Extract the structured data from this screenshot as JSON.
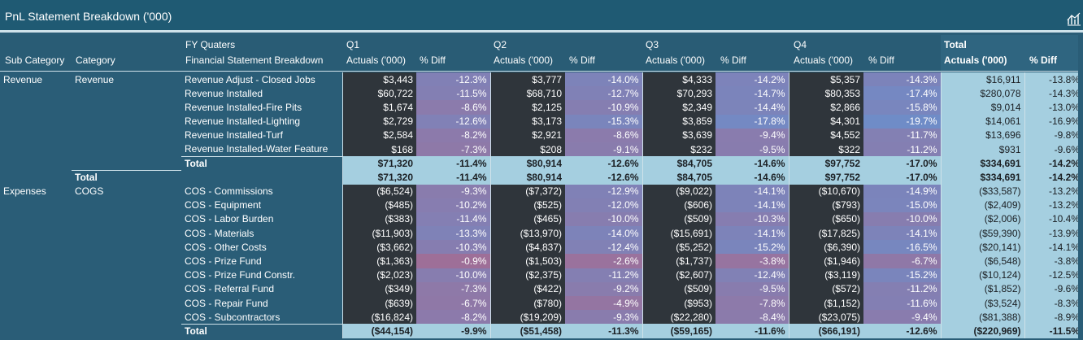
{
  "visual": {
    "title": "PnL Statement Breakdown ('000)"
  },
  "headers": {
    "sub_category": "Sub Category",
    "category": "Category",
    "fy_quarters": "FY Quaters",
    "breakdown": "Financial Statement Breakdown",
    "q1": "Q1",
    "q2": "Q2",
    "q3": "Q3",
    "q4": "Q4",
    "total": "Total",
    "actuals": "Actuals ('000)",
    "pct_diff": "% Diff"
  },
  "rows": [
    {
      "sub": "Revenue",
      "cat": "Revenue",
      "item": "Revenue Adjust - Closed Jobs",
      "q1": "$3,443",
      "q1p": "-12.3%",
      "q2": "$3,777",
      "q2p": "-14.0%",
      "q3": "$4,333",
      "q3p": "-14.2%",
      "q4": "$5,357",
      "q4p": "-14.3%",
      "ta": "$16,911",
      "tp": "-13.8%",
      "type": "data",
      "pv": [
        -12.3,
        -14.0,
        -14.2,
        -14.3
      ]
    },
    {
      "sub": "",
      "cat": "",
      "item": "Revenue Installed",
      "q1": "$60,722",
      "q1p": "-11.5%",
      "q2": "$68,710",
      "q2p": "-12.7%",
      "q3": "$70,293",
      "q3p": "-14.7%",
      "q4": "$80,353",
      "q4p": "-17.4%",
      "ta": "$280,078",
      "tp": "-14.3%",
      "type": "data",
      "pv": [
        -11.5,
        -12.7,
        -14.7,
        -17.4
      ]
    },
    {
      "sub": "",
      "cat": "",
      "item": "Revenue Installed-Fire Pits",
      "q1": "$1,674",
      "q1p": "-8.6%",
      "q2": "$2,125",
      "q2p": "-10.9%",
      "q3": "$2,349",
      "q3p": "-14.4%",
      "q4": "$2,866",
      "q4p": "-15.8%",
      "ta": "$9,014",
      "tp": "-13.0%",
      "type": "data",
      "pv": [
        -8.6,
        -10.9,
        -14.4,
        -15.8
      ]
    },
    {
      "sub": "",
      "cat": "",
      "item": "Revenue Installed-Lighting",
      "q1": "$2,729",
      "q1p": "-12.6%",
      "q2": "$3,173",
      "q2p": "-15.3%",
      "q3": "$3,859",
      "q3p": "-17.8%",
      "q4": "$4,301",
      "q4p": "-19.7%",
      "ta": "$14,061",
      "tp": "-16.9%",
      "type": "data",
      "pv": [
        -12.6,
        -15.3,
        -17.8,
        -19.7
      ]
    },
    {
      "sub": "",
      "cat": "",
      "item": "Revenue Installed-Turf",
      "q1": "$2,584",
      "q1p": "-8.2%",
      "q2": "$2,921",
      "q2p": "-8.6%",
      "q3": "$3,639",
      "q3p": "-9.4%",
      "q4": "$4,552",
      "q4p": "-11.7%",
      "ta": "$13,696",
      "tp": "-9.8%",
      "type": "data",
      "pv": [
        -8.2,
        -8.6,
        -9.4,
        -11.7
      ]
    },
    {
      "sub": "",
      "cat": "",
      "item": "Revenue Installed-Water Feature",
      "q1": "$168",
      "q1p": "-7.3%",
      "q2": "$208",
      "q2p": "-9.1%",
      "q3": "$232",
      "q3p": "-9.5%",
      "q4": "$322",
      "q4p": "-11.2%",
      "ta": "$931",
      "tp": "-9.6%",
      "type": "data",
      "pv": [
        -7.3,
        -9.1,
        -9.5,
        -11.2
      ]
    },
    {
      "sub": "",
      "cat": "",
      "item": "Total",
      "q1": "$71,320",
      "q1p": "-11.4%",
      "q2": "$80,914",
      "q2p": "-12.6%",
      "q3": "$84,705",
      "q3p": "-14.6%",
      "q4": "$97,752",
      "q4p": "-17.0%",
      "ta": "$334,691",
      "tp": "-14.2%",
      "type": "total",
      "pv": [
        0,
        0,
        0,
        0
      ]
    },
    {
      "sub": "",
      "cat": "Total",
      "item": "",
      "q1": "$71,320",
      "q1p": "-11.4%",
      "q2": "$80,914",
      "q2p": "-12.6%",
      "q3": "$84,705",
      "q3p": "-14.6%",
      "q4": "$97,752",
      "q4p": "-17.0%",
      "ta": "$334,691",
      "tp": "-14.2%",
      "type": "grand",
      "pv": [
        0,
        0,
        0,
        0
      ]
    },
    {
      "sub": "Expenses",
      "cat": "COGS",
      "item": "COS - Commissions",
      "q1": "($6,524)",
      "q1p": "-9.3%",
      "q2": "($7,372)",
      "q2p": "-12.9%",
      "q3": "($9,022)",
      "q3p": "-14.1%",
      "q4": "($10,670)",
      "q4p": "-14.9%",
      "ta": "($33,587)",
      "tp": "-13.2%",
      "type": "data",
      "pv": [
        -9.3,
        -12.9,
        -14.1,
        -14.9
      ]
    },
    {
      "sub": "",
      "cat": "",
      "item": "COS - Equipment",
      "q1": "($485)",
      "q1p": "-10.2%",
      "q2": "($525)",
      "q2p": "-12.0%",
      "q3": "($606)",
      "q3p": "-14.1%",
      "q4": "($793)",
      "q4p": "-15.0%",
      "ta": "($2,409)",
      "tp": "-13.2%",
      "type": "data",
      "pv": [
        -10.2,
        -12.0,
        -14.1,
        -15.0
      ]
    },
    {
      "sub": "",
      "cat": "",
      "item": "COS - Labor Burden",
      "q1": "($383)",
      "q1p": "-11.4%",
      "q2": "($465)",
      "q2p": "-10.0%",
      "q3": "($509)",
      "q3p": "-10.3%",
      "q4": "($650)",
      "q4p": "-10.0%",
      "ta": "($2,006)",
      "tp": "-10.4%",
      "type": "data",
      "pv": [
        -11.4,
        -10.0,
        -10.3,
        -10.0
      ]
    },
    {
      "sub": "",
      "cat": "",
      "item": "COS - Materials",
      "q1": "($11,903)",
      "q1p": "-13.3%",
      "q2": "($13,970)",
      "q2p": "-14.0%",
      "q3": "($15,691)",
      "q3p": "-14.1%",
      "q4": "($17,825)",
      "q4p": "-14.1%",
      "ta": "($59,390)",
      "tp": "-13.9%",
      "type": "data",
      "pv": [
        -13.3,
        -14.0,
        -14.1,
        -14.1
      ]
    },
    {
      "sub": "",
      "cat": "",
      "item": "COS - Other Costs",
      "q1": "($3,662)",
      "q1p": "-10.3%",
      "q2": "($4,837)",
      "q2p": "-12.4%",
      "q3": "($5,252)",
      "q3p": "-15.2%",
      "q4": "($6,390)",
      "q4p": "-16.5%",
      "ta": "($20,141)",
      "tp": "-14.1%",
      "type": "data",
      "pv": [
        -10.3,
        -12.4,
        -15.2,
        -16.5
      ]
    },
    {
      "sub": "",
      "cat": "",
      "item": "COS - Prize Fund",
      "q1": "($1,363)",
      "q1p": "-0.9%",
      "q2": "($1,503)",
      "q2p": "-2.6%",
      "q3": "($1,737)",
      "q3p": "-3.8%",
      "q4": "($1,946)",
      "q4p": "-6.7%",
      "ta": "($6,548)",
      "tp": "-3.8%",
      "type": "data",
      "pv": [
        -0.9,
        -2.6,
        -3.8,
        -6.7
      ]
    },
    {
      "sub": "",
      "cat": "",
      "item": "COS - Prize Fund Constr.",
      "q1": "($2,023)",
      "q1p": "-10.0%",
      "q2": "($2,375)",
      "q2p": "-11.2%",
      "q3": "($2,607)",
      "q3p": "-12.4%",
      "q4": "($3,119)",
      "q4p": "-15.2%",
      "ta": "($10,124)",
      "tp": "-12.5%",
      "type": "data",
      "pv": [
        -10.0,
        -11.2,
        -12.4,
        -15.2
      ]
    },
    {
      "sub": "",
      "cat": "",
      "item": "COS - Referral Fund",
      "q1": "($349)",
      "q1p": "-7.3%",
      "q2": "($422)",
      "q2p": "-9.2%",
      "q3": "($509)",
      "q3p": "-9.5%",
      "q4": "($572)",
      "q4p": "-11.2%",
      "ta": "($1,852)",
      "tp": "-9.6%",
      "type": "data",
      "pv": [
        -7.3,
        -9.2,
        -9.5,
        -11.2
      ]
    },
    {
      "sub": "",
      "cat": "",
      "item": "COS - Repair Fund",
      "q1": "($639)",
      "q1p": "-6.7%",
      "q2": "($780)",
      "q2p": "-4.9%",
      "q3": "($953)",
      "q3p": "-7.8%",
      "q4": "($1,152)",
      "q4p": "-11.6%",
      "ta": "($3,524)",
      "tp": "-8.3%",
      "type": "data",
      "pv": [
        -6.7,
        -4.9,
        -7.8,
        -11.6
      ]
    },
    {
      "sub": "",
      "cat": "",
      "item": "COS - Subcontractors",
      "q1": "($16,824)",
      "q1p": "-8.2%",
      "q2": "($19,209)",
      "q2p": "-9.3%",
      "q3": "($22,280)",
      "q3p": "-8.4%",
      "q4": "($23,075)",
      "q4p": "-9.4%",
      "ta": "($81,388)",
      "tp": "-8.9%",
      "type": "data",
      "pv": [
        -8.2,
        -9.3,
        -8.4,
        -9.4
      ]
    },
    {
      "sub": "",
      "cat": "",
      "item": "Total",
      "q1": "($44,154)",
      "q1p": "-9.9%",
      "q2": "($51,458)",
      "q2p": "-11.3%",
      "q3": "($59,165)",
      "q3p": "-11.6%",
      "q4": "($66,191)",
      "q4p": "-12.6%",
      "ta": "($220,969)",
      "tp": "-11.5%",
      "type": "total",
      "pv": [
        0,
        0,
        0,
        0
      ]
    }
  ]
}
